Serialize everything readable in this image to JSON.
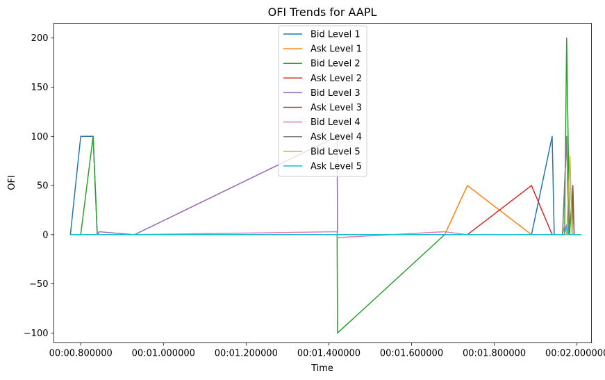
{
  "chart_data": {
    "type": "line",
    "title": "OFI Trends for AAPL",
    "xlabel": "Time",
    "ylabel": "OFI",
    "xlim": [
      0.735,
      2.035
    ],
    "ylim": [
      -110,
      215
    ],
    "x_ticks": [
      {
        "value": 0.8,
        "label": "00:00.800000"
      },
      {
        "value": 1.0,
        "label": "00:01.000000"
      },
      {
        "value": 1.2,
        "label": "00:01.200000"
      },
      {
        "value": 1.4,
        "label": "00:01.400000"
      },
      {
        "value": 1.6,
        "label": "00:01.600000"
      },
      {
        "value": 1.8,
        "label": "00:01.800000"
      },
      {
        "value": 2.0,
        "label": "00:02.000000"
      }
    ],
    "y_ticks": [
      {
        "value": -100,
        "label": "−100"
      },
      {
        "value": -50,
        "label": "−50"
      },
      {
        "value": 0,
        "label": "0"
      },
      {
        "value": 50,
        "label": "50"
      },
      {
        "value": 100,
        "label": "100"
      },
      {
        "value": 150,
        "label": "150"
      },
      {
        "value": 200,
        "label": "200"
      }
    ],
    "grid": false,
    "legend_position": "top-center",
    "series": [
      {
        "name": "Bid Level 1",
        "color": "#1f77b4",
        "points": [
          [
            0.775,
            0
          ],
          [
            0.8,
            100
          ],
          [
            0.83,
            100
          ],
          [
            0.84,
            0
          ],
          [
            1.42,
            0
          ],
          [
            1.89,
            0
          ],
          [
            1.94,
            100
          ],
          [
            1.945,
            0
          ],
          [
            2.01,
            0
          ]
        ]
      },
      {
        "name": "Ask Level 1",
        "color": "#ff7f0e",
        "points": [
          [
            0.775,
            0
          ],
          [
            1.42,
            0
          ],
          [
            1.68,
            0
          ],
          [
            1.735,
            50
          ],
          [
            1.89,
            0
          ],
          [
            2.01,
            0
          ]
        ]
      },
      {
        "name": "Bid Level 2",
        "color": "#2ca02c",
        "points": [
          [
            0.775,
            0
          ],
          [
            0.8,
            0
          ],
          [
            0.83,
            100
          ],
          [
            0.84,
            0
          ],
          [
            1.42,
            0
          ],
          [
            1.421,
            -100
          ],
          [
            1.68,
            0
          ],
          [
            1.97,
            0
          ],
          [
            1.975,
            200
          ],
          [
            1.982,
            0
          ],
          [
            1.99,
            50
          ],
          [
            1.993,
            0
          ],
          [
            2.01,
            0
          ]
        ]
      },
      {
        "name": "Ask Level 2",
        "color": "#d62728",
        "points": [
          [
            0.775,
            0
          ],
          [
            1.42,
            0
          ],
          [
            1.735,
            0
          ],
          [
            1.89,
            50
          ],
          [
            1.94,
            0
          ],
          [
            2.01,
            0
          ]
        ]
      },
      {
        "name": "Bid Level 3",
        "color": "#9467bd",
        "points": [
          [
            0.775,
            0
          ],
          [
            0.84,
            0
          ],
          [
            0.845,
            3
          ],
          [
            0.93,
            0
          ],
          [
            1.42,
            100
          ],
          [
            1.421,
            0
          ],
          [
            1.965,
            0
          ],
          [
            1.975,
            100
          ],
          [
            1.98,
            0
          ],
          [
            2.01,
            0
          ]
        ]
      },
      {
        "name": "Ask Level 3",
        "color": "#8c564b",
        "points": [
          [
            0.775,
            0
          ],
          [
            1.96,
            0
          ],
          [
            1.988,
            0
          ],
          [
            1.99,
            50
          ],
          [
            1.993,
            0
          ],
          [
            2.01,
            0
          ]
        ]
      },
      {
        "name": "Bid Level 4",
        "color": "#e377c2",
        "points": [
          [
            0.775,
            0
          ],
          [
            0.93,
            0
          ],
          [
            1.42,
            3
          ],
          [
            1.421,
            -3
          ],
          [
            1.68,
            3
          ],
          [
            1.735,
            0
          ],
          [
            1.965,
            0
          ],
          [
            1.97,
            10
          ],
          [
            1.978,
            0
          ],
          [
            2.01,
            0
          ]
        ]
      },
      {
        "name": "Ask Level 4",
        "color": "#7f7f7f",
        "points": [
          [
            0.775,
            0
          ],
          [
            1.965,
            0
          ],
          [
            1.975,
            100
          ],
          [
            1.98,
            0
          ],
          [
            2.01,
            0
          ]
        ]
      },
      {
        "name": "Bid Level 5",
        "color": "#bcbd22",
        "points": [
          [
            0.775,
            0
          ],
          [
            1.975,
            0
          ],
          [
            1.983,
            80
          ],
          [
            1.988,
            0
          ],
          [
            2.01,
            0
          ]
        ]
      },
      {
        "name": "Ask Level 5",
        "color": "#17becf",
        "points": [
          [
            0.775,
            0
          ],
          [
            1.97,
            0
          ],
          [
            1.975,
            10
          ],
          [
            1.98,
            0
          ],
          [
            2.01,
            0
          ]
        ]
      }
    ]
  }
}
